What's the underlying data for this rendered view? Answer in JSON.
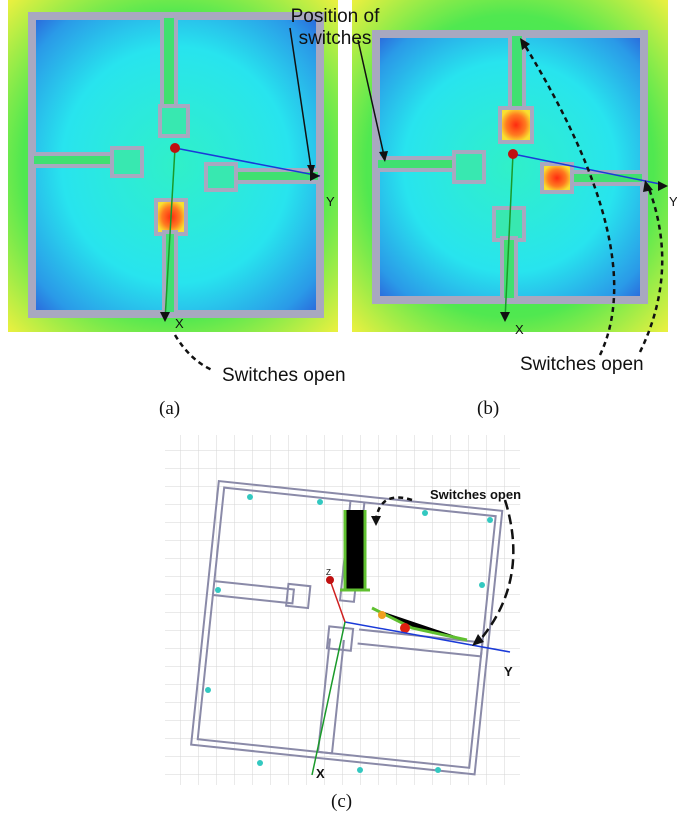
{
  "panels": [
    {
      "label": "(a)",
      "axis_x": "X",
      "axis_y": "Y",
      "annotations": [
        "Position of switches",
        "Switches open"
      ]
    },
    {
      "label": "(b)",
      "axis_x": "X",
      "axis_y": "Y",
      "annotations": [
        "Switches open"
      ]
    },
    {
      "label": "(c)",
      "axis_x": "X",
      "axis_y": "Y",
      "axis_z": "Z",
      "annotations": [
        "Switches open"
      ]
    }
  ]
}
